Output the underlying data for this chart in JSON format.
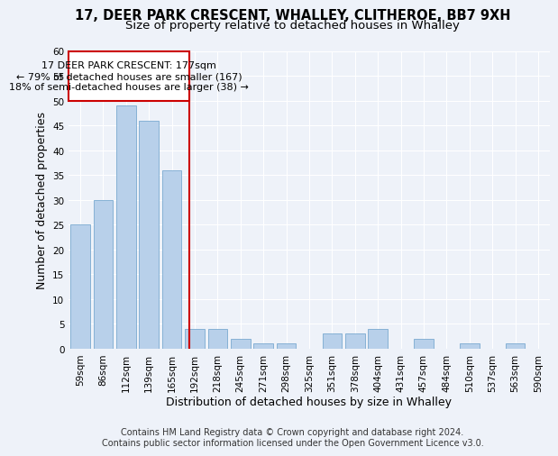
{
  "title1": "17, DEER PARK CRESCENT, WHALLEY, CLITHEROE, BB7 9XH",
  "title2": "Size of property relative to detached houses in Whalley",
  "xlabel": "Distribution of detached houses by size in Whalley",
  "ylabel": "Number of detached properties",
  "footer1": "Contains HM Land Registry data © Crown copyright and database right 2024.",
  "footer2": "Contains public sector information licensed under the Open Government Licence v3.0.",
  "annotation_line1": "17 DEER PARK CRESCENT: 177sqm",
  "annotation_line2": "← 79% of detached houses are smaller (167)",
  "annotation_line3": "18% of semi-detached houses are larger (38) →",
  "bar_labels": [
    "59sqm",
    "86sqm",
    "112sqm",
    "139sqm",
    "165sqm",
    "192sqm",
    "218sqm",
    "245sqm",
    "271sqm",
    "298sqm",
    "325sqm",
    "351sqm",
    "378sqm",
    "404sqm",
    "431sqm",
    "457sqm",
    "484sqm",
    "510sqm",
    "537sqm",
    "563sqm",
    "590sqm"
  ],
  "bar_values": [
    25,
    30,
    49,
    46,
    36,
    4,
    4,
    2,
    1,
    1,
    0,
    3,
    3,
    4,
    0,
    2,
    0,
    1,
    0,
    1,
    0
  ],
  "bar_color": "#b8d0ea",
  "bar_edgecolor": "#7aaad0",
  "vline_x": 4.75,
  "vline_color": "#cc0000",
  "annotation_box_color": "#cc0000",
  "ylim": [
    0,
    60
  ],
  "yticks": [
    0,
    5,
    10,
    15,
    20,
    25,
    30,
    35,
    40,
    45,
    50,
    55,
    60
  ],
  "bg_color": "#eef2f9",
  "grid_color": "#ffffff",
  "title_fontsize": 10.5,
  "subtitle_fontsize": 9.5,
  "axis_label_fontsize": 9,
  "tick_fontsize": 7.5,
  "footer_fontsize": 7,
  "annotation_fontsize": 8
}
